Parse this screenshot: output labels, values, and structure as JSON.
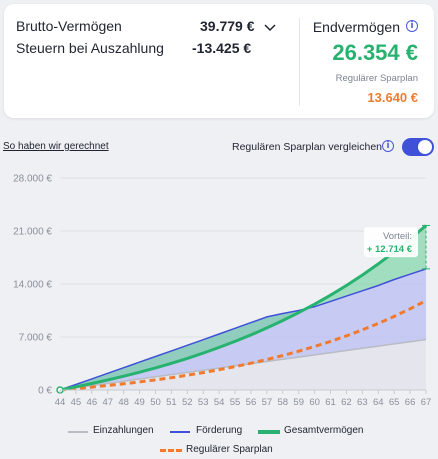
{
  "summary": {
    "brutto_label": "Brutto-Vermögen",
    "brutto_value": "39.779 €",
    "steuern_label": "Steuern bei Auszahlung",
    "steuern_value": "-13.425 €",
    "end_title": "Endvermögen",
    "end_value": "26.354 €",
    "sparplan_label": "Regulärer Sparplan",
    "sparplan_value": "13.640 €"
  },
  "controls": {
    "calc_link": "So haben wir gerechnet",
    "compare_label": "Regulären Sparplan vergleichen",
    "compare_toggle_on": true
  },
  "icons": {
    "info": "info-icon",
    "chevron": "chevron-down-icon"
  },
  "colors": {
    "green": "#27b36f",
    "blue": "#3f51d8",
    "orange": "#f07b2e",
    "grey": "#b9bcc4"
  },
  "chart_data": {
    "type": "area",
    "x": [
      44,
      45,
      46,
      47,
      48,
      49,
      50,
      51,
      52,
      53,
      54,
      55,
      56,
      57,
      58,
      59,
      60,
      61,
      62,
      63,
      64,
      65,
      66,
      67
    ],
    "ylim": [
      0,
      28000
    ],
    "y_ticks": [
      "0 €",
      "7.000 €",
      "14.000 €",
      "21.000 €",
      "28.000 €"
    ],
    "x_ticks": [
      "44",
      "45",
      "46",
      "47",
      "48",
      "49",
      "50",
      "51",
      "52",
      "53",
      "54",
      "55",
      "56",
      "57",
      "58",
      "59",
      "60",
      "61",
      "62",
      "63",
      "64",
      "65",
      "66",
      "67"
    ],
    "series": [
      {
        "name": "Einzahlungen",
        "values": [
          0,
          290,
          580,
          870,
          1160,
          1450,
          1740,
          2030,
          2320,
          2610,
          2900,
          3190,
          3480,
          3770,
          4060,
          4350,
          4640,
          4930,
          5220,
          5510,
          5800,
          6090,
          6380,
          6670
        ]
      },
      {
        "name": "Förderung",
        "values": [
          0,
          730,
          1460,
          2200,
          2940,
          3680,
          4420,
          5160,
          5900,
          6650,
          7400,
          8150,
          8900,
          9650,
          10100,
          10500,
          11000,
          11700,
          12400,
          13100,
          13800,
          14600,
          15300,
          16000
        ]
      },
      {
        "name": "Gesamtvermögen",
        "values": [
          0,
          420,
          860,
          1320,
          1820,
          2350,
          2920,
          3530,
          4180,
          4880,
          5620,
          6420,
          7280,
          8200,
          9180,
          10220,
          11330,
          12520,
          13800,
          15180,
          16660,
          18240,
          19930,
          21730
        ]
      },
      {
        "name": "Regulärer Sparplan",
        "values": [
          0,
          180,
          380,
          590,
          820,
          1070,
          1340,
          1630,
          1950,
          2300,
          2680,
          3090,
          3540,
          4030,
          4560,
          5130,
          5750,
          6420,
          7150,
          7940,
          8800,
          9720,
          10720,
          11790
        ]
      }
    ],
    "annotation_label": "Vorteil:",
    "annotation_value": "+ 12.714 €"
  }
}
